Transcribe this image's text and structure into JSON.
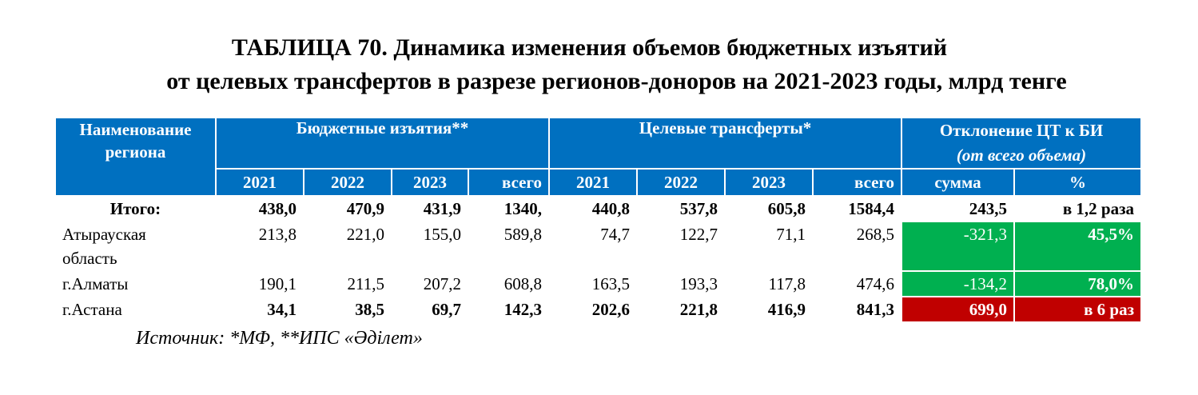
{
  "title": {
    "line1": "ТАБЛИЦА 70. Динамика изменения объемов бюджетных изъятий",
    "line2": "от целевых трансфертов в разрезе регионов-доноров на 2021-2023 годы, млрд тенге"
  },
  "header": {
    "region_line1": "Наименование",
    "region_line2": "региона",
    "budget_withdrawals": "Бюджетные изъятия**",
    "targeted_transfers": "Целевые трансферты*",
    "deviation_line1": "Отклонение ЦТ к БИ",
    "deviation_line2": "(от всего объема)",
    "years": [
      "2021",
      "2022",
      "2023",
      "всего"
    ],
    "deviation_cols": [
      "сумма",
      "%"
    ]
  },
  "rows": [
    {
      "region": "Итого:",
      "bi": [
        "438,0",
        "470,9",
        "431,9",
        "1340,"
      ],
      "ct": [
        "440,8",
        "537,8",
        "605,8",
        "1584,4"
      ],
      "sum": "243,5",
      "pct": "в 1,2 раза"
    },
    {
      "region_line1": "Атырауская",
      "region_line2": "область",
      "bi": [
        "213,8",
        "221,0",
        "155,0",
        "589,8"
      ],
      "ct": [
        "74,7",
        "122,7",
        "71,1",
        "268,5"
      ],
      "sum": "-321,3",
      "pct": "45,5%"
    },
    {
      "region": "г.Алматы",
      "bi": [
        "190,1",
        "211,5",
        "207,2",
        "608,8"
      ],
      "ct": [
        "163,5",
        "193,3",
        "117,8",
        "474,6"
      ],
      "sum": "-134,2",
      "pct": "78,0%"
    },
    {
      "region": "г.Астана",
      "bi": [
        "34,1",
        "38,5",
        "69,7",
        "142,3"
      ],
      "ct": [
        "202,6",
        "221,8",
        "416,9",
        "841,3"
      ],
      "sum": "699,0",
      "pct": "в 6 раз"
    }
  ],
  "source": "Источник: *МФ, **ИПС «Әділет»",
  "colors": {
    "header_blue": "#0070c0",
    "positive_green": "#00b050",
    "negative_red": "#c00000",
    "border_blue": "#2e75b6"
  }
}
